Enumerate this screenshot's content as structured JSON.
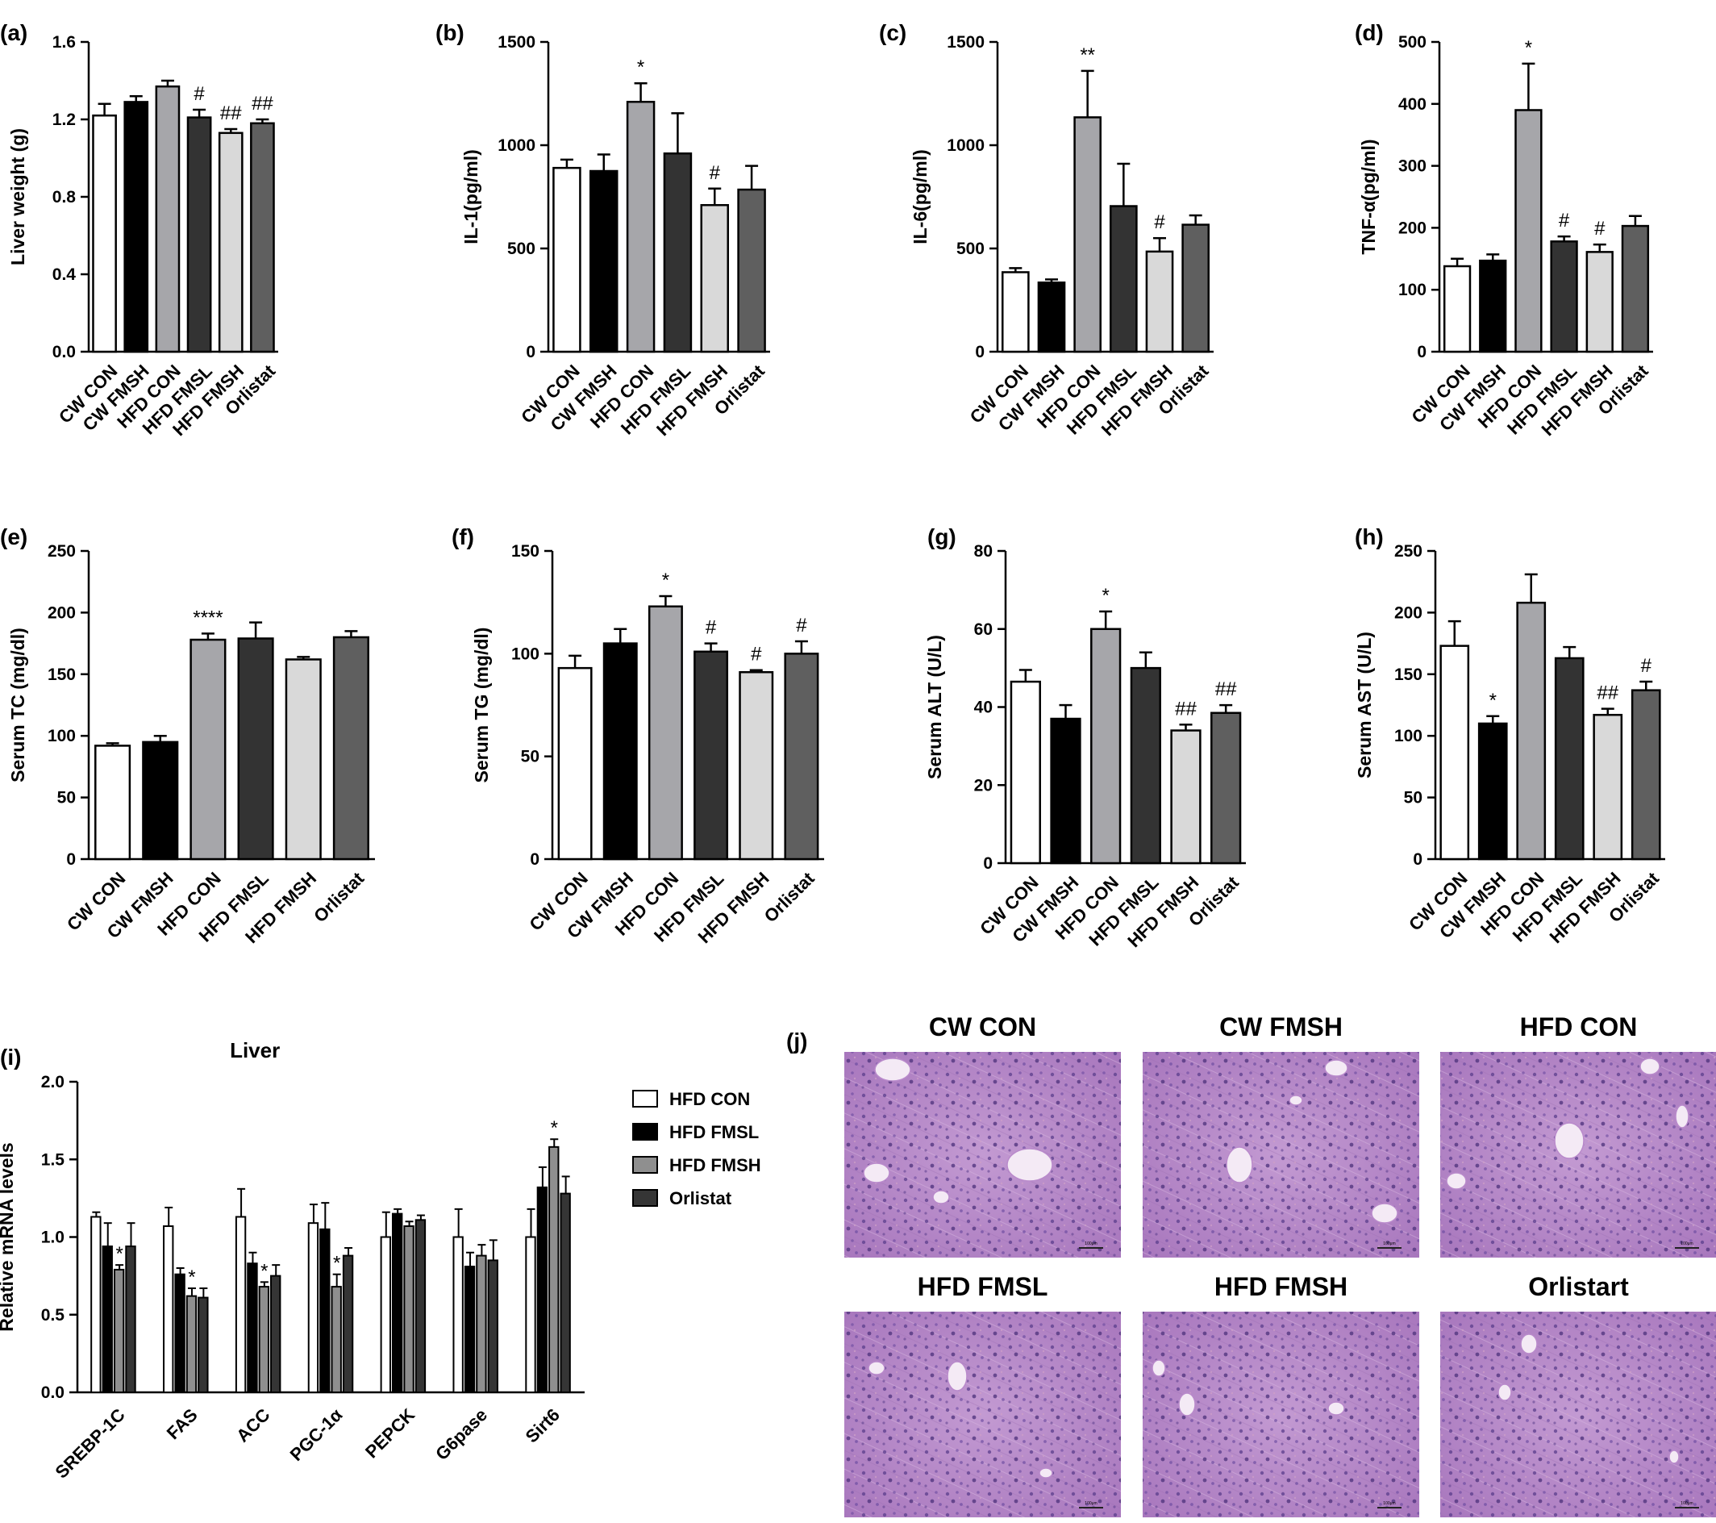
{
  "figure": {
    "bar_styles": {
      "CW CON": "#ffffff",
      "CW FMSH": "#000000",
      "HFD CON": "#a6a6aa",
      "HFD FMSL": "#333333",
      "HFD FMSH": "#d9d9d9",
      "Orlistat": "#5f5f5f"
    },
    "liver_panel_styles": {
      "HFD CON": "#ffffff",
      "HFD FMSL": "#000000",
      "HFD FMSH": "#8f8f8f",
      "Orlistat": "#353535"
    },
    "he_stain_color": "#b07fc4"
  },
  "chart_data": [
    {
      "panel": "(a)",
      "type": "bar",
      "title": "",
      "xlabel": "",
      "ylabel": "Liver weight (g)",
      "ylim": [
        0,
        1.6
      ],
      "yticks": [
        "0.0",
        "0.4",
        "0.8",
        "1.2",
        "1.6"
      ],
      "categories": [
        "CW CON",
        "CW FMSH",
        "HFD CON",
        "HFD FMSL",
        "HFD FMSH",
        "Orlistat"
      ],
      "values": [
        1.22,
        1.29,
        1.37,
        1.21,
        1.13,
        1.18
      ],
      "errors": [
        0.06,
        0.03,
        0.03,
        0.04,
        0.02,
        0.02
      ],
      "annotations": [
        "",
        "",
        "",
        "#",
        "##",
        "##"
      ]
    },
    {
      "panel": "(b)",
      "type": "bar",
      "title": "",
      "xlabel": "",
      "ylabel": "IL-1(pg/ml)",
      "ylim": [
        0,
        1500
      ],
      "yticks": [
        "0",
        "500",
        "1000",
        "1500"
      ],
      "categories": [
        "CW CON",
        "CW FMSH",
        "HFD CON",
        "HFD FMSL",
        "HFD FMSH",
        "Orlistat"
      ],
      "values": [
        890,
        875,
        1210,
        960,
        710,
        785
      ],
      "errors": [
        40,
        80,
        90,
        195,
        80,
        115
      ],
      "annotations": [
        "",
        "",
        "*",
        "",
        "#",
        ""
      ]
    },
    {
      "panel": "(c)",
      "type": "bar",
      "title": "",
      "xlabel": "",
      "ylabel": "IL-6(pg/ml)",
      "ylim": [
        0,
        1500
      ],
      "yticks": [
        "0",
        "500",
        "1000",
        "1500"
      ],
      "categories": [
        "CW CON",
        "CW FMSH",
        "HFD CON",
        "HFD FMSL",
        "HFD FMSH",
        "Orlistat"
      ],
      "values": [
        385,
        335,
        1135,
        705,
        485,
        615
      ],
      "errors": [
        20,
        15,
        225,
        205,
        65,
        45
      ],
      "annotations": [
        "",
        "",
        "**",
        "",
        "#",
        ""
      ]
    },
    {
      "panel": "(d)",
      "type": "bar",
      "title": "",
      "xlabel": "",
      "ylabel": "TNF-α(pg/ml)",
      "ylim": [
        0,
        500
      ],
      "yticks": [
        "0",
        "100",
        "200",
        "300",
        "400",
        "500"
      ],
      "categories": [
        "CW CON",
        "CW FMSH",
        "HFD CON",
        "HFD FMSL",
        "HFD FMSH",
        "Orlistat"
      ],
      "values": [
        138,
        147,
        390,
        178,
        161,
        203
      ],
      "errors": [
        12,
        10,
        75,
        8,
        12,
        16
      ],
      "annotations": [
        "",
        "",
        "*",
        "#",
        "#",
        ""
      ]
    },
    {
      "panel": "(e)",
      "type": "bar",
      "title": "",
      "xlabel": "",
      "ylabel": "Serum TC (mg/dl)",
      "ylim": [
        0,
        250
      ],
      "yticks": [
        "0",
        "50",
        "100",
        "150",
        "200",
        "250"
      ],
      "categories": [
        "CW CON",
        "CW FMSH",
        "HFD CON",
        "HFD FMSL",
        "HFD FMSH",
        "Orlistat"
      ],
      "values": [
        92,
        95,
        178,
        179,
        162,
        180
      ],
      "errors": [
        2,
        5,
        5,
        13,
        2,
        5
      ],
      "annotations": [
        "",
        "",
        "****",
        "",
        "",
        ""
      ]
    },
    {
      "panel": "(f)",
      "type": "bar",
      "title": "",
      "xlabel": "",
      "ylabel": "Serum TG (mg/dl)",
      "ylim": [
        0,
        150
      ],
      "yticks": [
        "0",
        "50",
        "100",
        "150"
      ],
      "categories": [
        "CW CON",
        "CW FMSH",
        "HFD CON",
        "HFD FMSL",
        "HFD FMSH",
        "Orlistat"
      ],
      "values": [
        93,
        105,
        123,
        101,
        91,
        100
      ],
      "errors": [
        6,
        7,
        5,
        4,
        1,
        6
      ],
      "annotations": [
        "",
        "",
        "*",
        "#",
        "#",
        "#"
      ]
    },
    {
      "panel": "(g)",
      "type": "bar",
      "title": "",
      "xlabel": "",
      "ylabel": "Serum ALT (U/L)",
      "ylim": [
        0,
        80
      ],
      "yticks": [
        "0",
        "20",
        "40",
        "60",
        "80"
      ],
      "categories": [
        "CW CON",
        "CW FMSH",
        "HFD CON",
        "HFD FMSL",
        "HFD FMSH",
        "Orlistat"
      ],
      "values": [
        46.5,
        37,
        60,
        50,
        34,
        38.5
      ],
      "errors": [
        3,
        3.5,
        4.5,
        4,
        1.5,
        2
      ],
      "annotations": [
        "",
        "",
        "*",
        "",
        "##",
        "##"
      ]
    },
    {
      "panel": "(h)",
      "type": "bar",
      "title": "",
      "xlabel": "",
      "ylabel": "Serum AST (U/L)",
      "ylim": [
        0,
        250
      ],
      "yticks": [
        "0",
        "50",
        "100",
        "150",
        "200",
        "250"
      ],
      "categories": [
        "CW CON",
        "CW FMSH",
        "HFD CON",
        "HFD FMSL",
        "HFD FMSH",
        "Orlistat"
      ],
      "values": [
        173,
        110,
        208,
        163,
        117,
        137
      ],
      "errors": [
        20,
        6,
        23,
        9,
        5,
        7
      ],
      "annotations": [
        "",
        "*",
        "",
        "",
        "##",
        "#"
      ]
    },
    {
      "panel": "(i)",
      "type": "bar",
      "title": "Liver",
      "xlabel": "",
      "ylabel": "Relative mRNA levels",
      "ylim": [
        0,
        2.0
      ],
      "yticks": [
        "0.0",
        "0.5",
        "1.0",
        "1.5",
        "2.0"
      ],
      "categories": [
        "SREBP-1C",
        "FAS",
        "ACC",
        "PGC-1α",
        "PEPCK",
        "G6pase",
        "Sirt6"
      ],
      "legend_position": "right",
      "series": [
        {
          "name": "HFD CON",
          "values": [
            1.13,
            1.07,
            1.13,
            1.09,
            1.0,
            1.0,
            1.0
          ],
          "errors": [
            0.03,
            0.12,
            0.18,
            0.12,
            0.16,
            0.18,
            0.18
          ]
        },
        {
          "name": "HFD FMSL",
          "values": [
            0.94,
            0.76,
            0.83,
            1.05,
            1.15,
            0.81,
            1.32
          ],
          "errors": [
            0.15,
            0.04,
            0.07,
            0.17,
            0.03,
            0.09,
            0.13
          ]
        },
        {
          "name": "HFD FMSH",
          "values": [
            0.79,
            0.62,
            0.68,
            0.68,
            1.07,
            0.88,
            1.58
          ],
          "errors": [
            0.03,
            0.05,
            0.03,
            0.08,
            0.03,
            0.07,
            0.05
          ]
        },
        {
          "name": "Orlistat",
          "values": [
            0.94,
            0.61,
            0.75,
            0.88,
            1.11,
            0.85,
            1.28
          ],
          "errors": [
            0.15,
            0.06,
            0.07,
            0.05,
            0.03,
            0.13,
            0.11
          ]
        }
      ],
      "annotations": [
        "*",
        "*",
        "*",
        "*",
        "",
        "",
        "*"
      ]
    }
  ],
  "panel_j": {
    "label": "(j)",
    "images": [
      {
        "title": "CW  CON",
        "scale": "100μm"
      },
      {
        "title": "CW  FMSH",
        "scale": "100μm"
      },
      {
        "title": "HFD  CON",
        "scale": "100μm"
      },
      {
        "title": "HFD  FMSL",
        "scale": "100μm"
      },
      {
        "title": "HFD  FMSH",
        "scale": "100μm"
      },
      {
        "title": "Orlistart",
        "scale": "100μm"
      }
    ]
  }
}
